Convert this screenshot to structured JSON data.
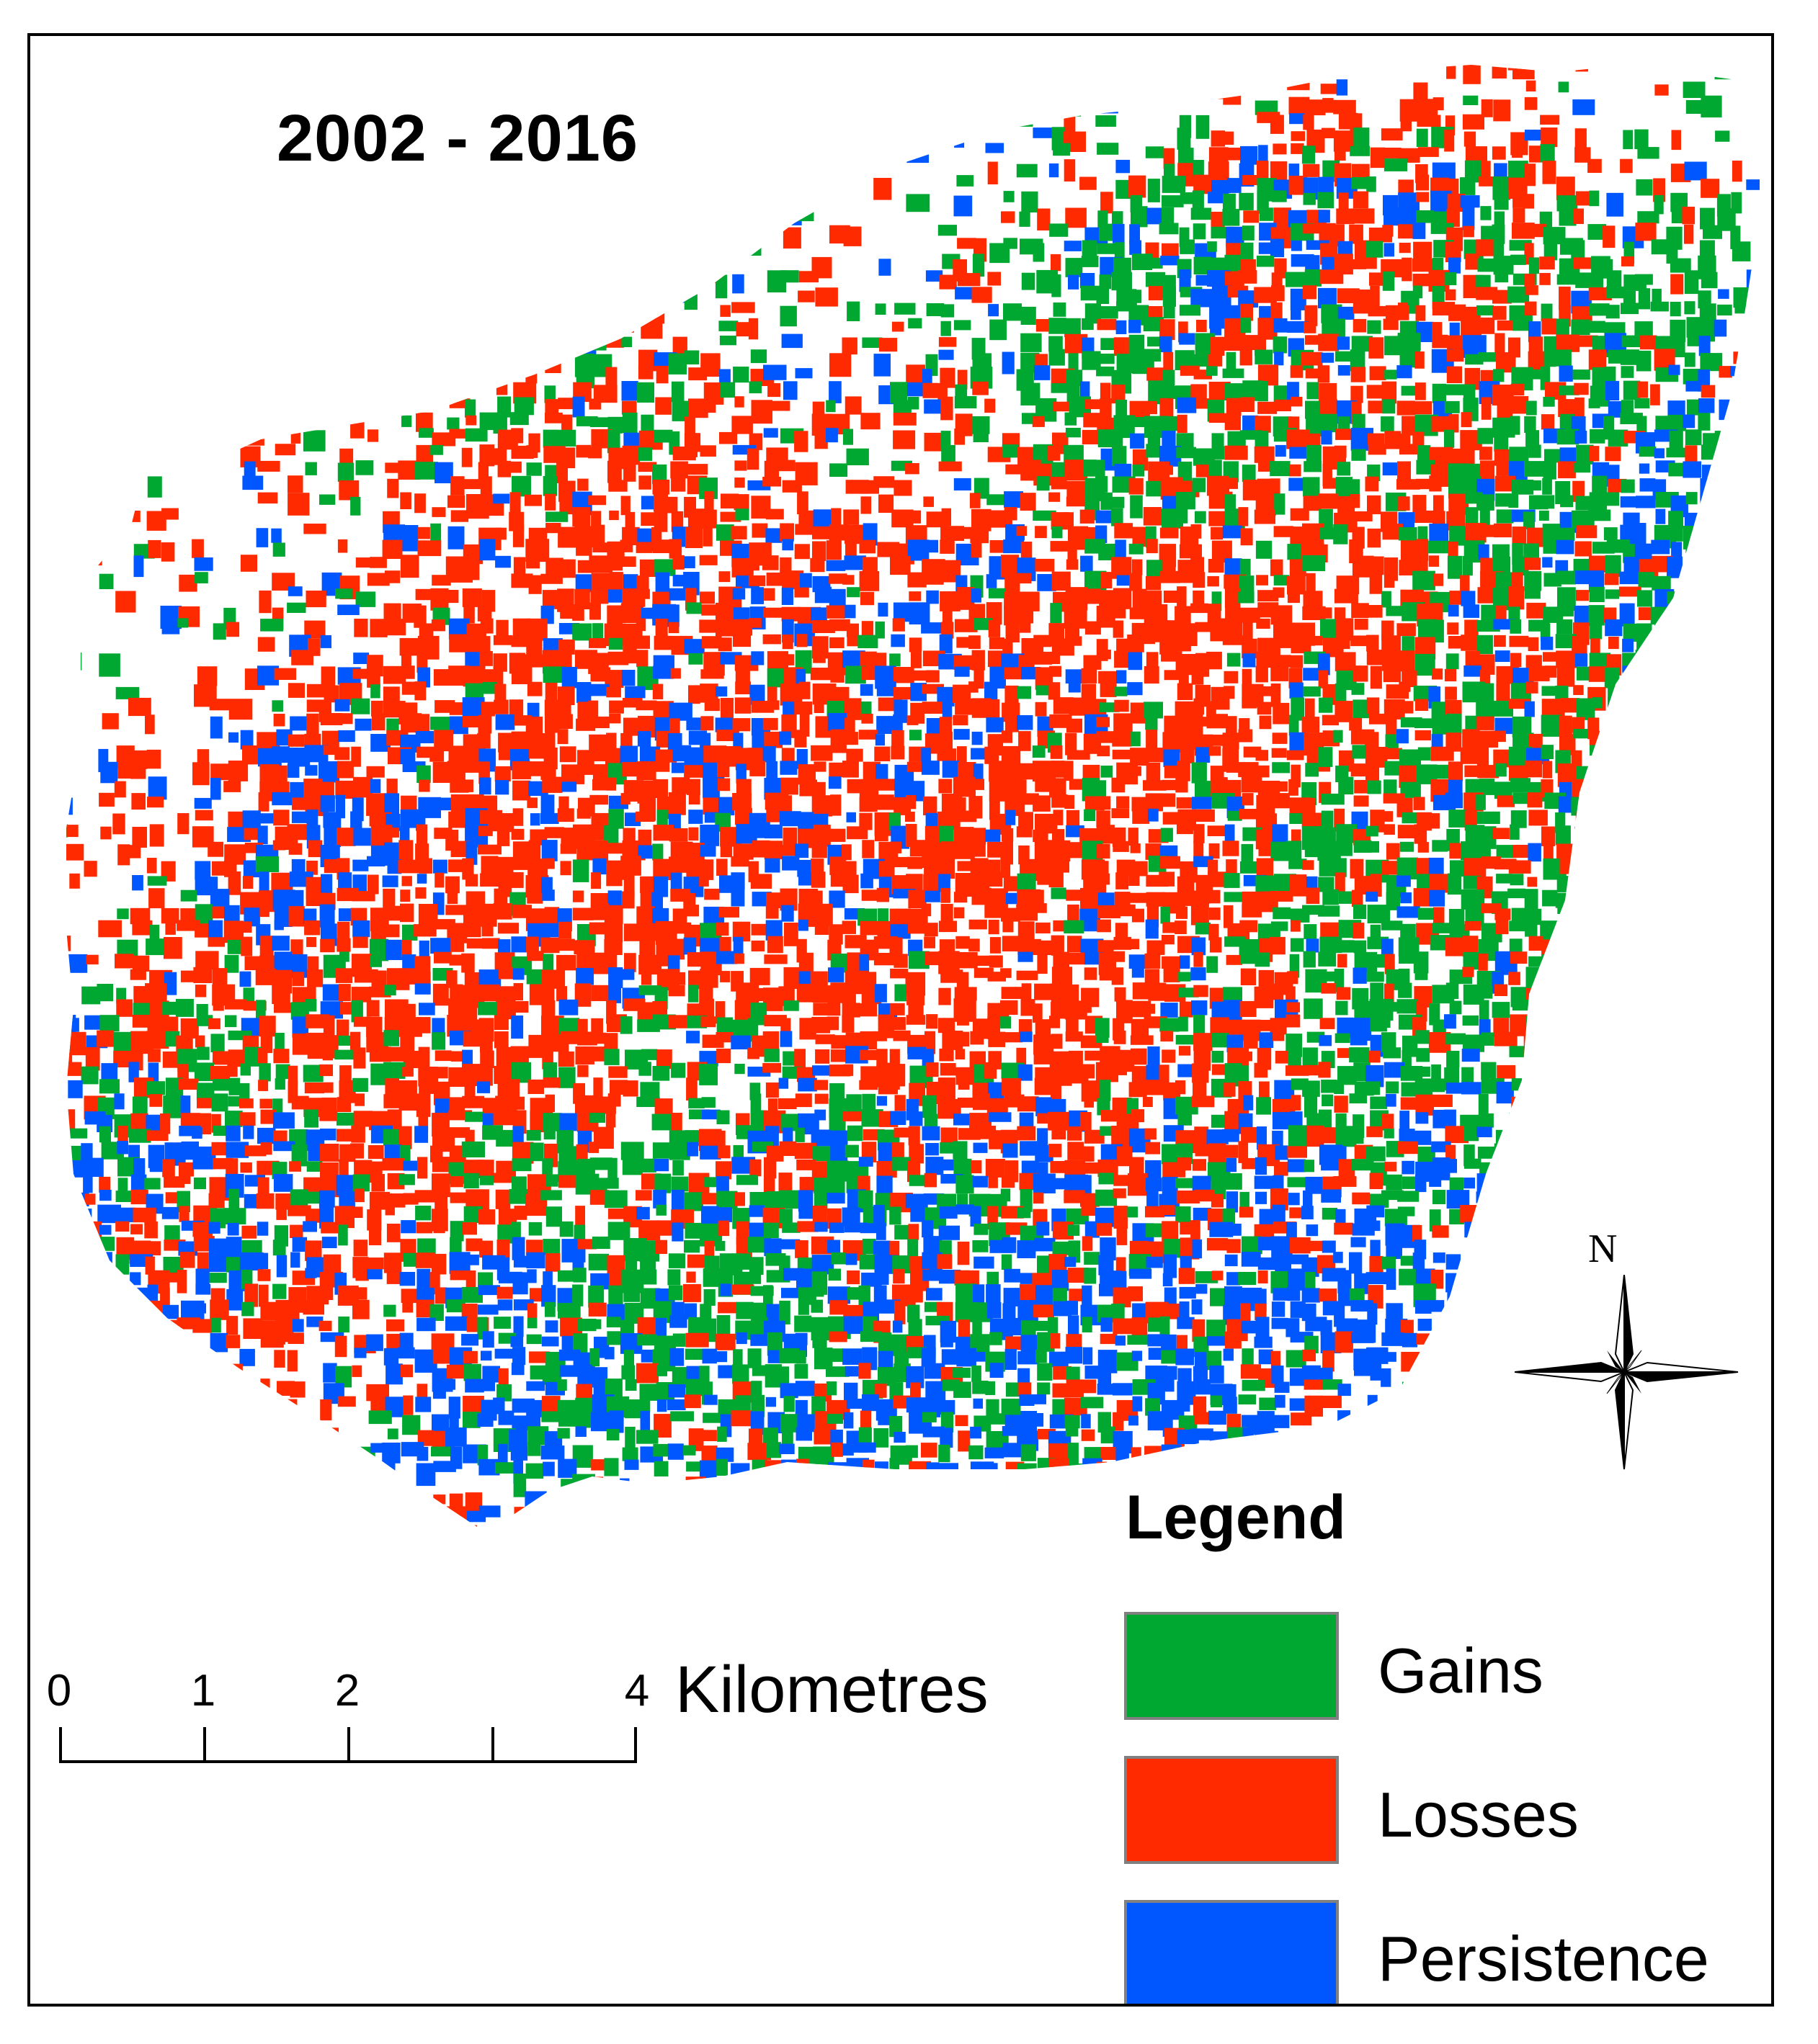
{
  "map": {
    "title": "2002 - 2016",
    "colors": {
      "gains": "#00a832",
      "losses": "#ff2a00",
      "persistence": "#0057ff",
      "frame": "#000000",
      "background": "#ffffff"
    }
  },
  "legend": {
    "title": "Legend",
    "items": [
      {
        "label": "Gains",
        "color": "#00a832"
      },
      {
        "label": "Losses",
        "color": "#ff2a00"
      },
      {
        "label": "Persistence",
        "color": "#0057ff"
      }
    ]
  },
  "scale_bar": {
    "unit": "Kilometres",
    "tick_labels": [
      "0",
      "1",
      "2",
      "4"
    ]
  },
  "north_arrow": {
    "label": "N",
    "icon": "compass-rose-icon"
  }
}
